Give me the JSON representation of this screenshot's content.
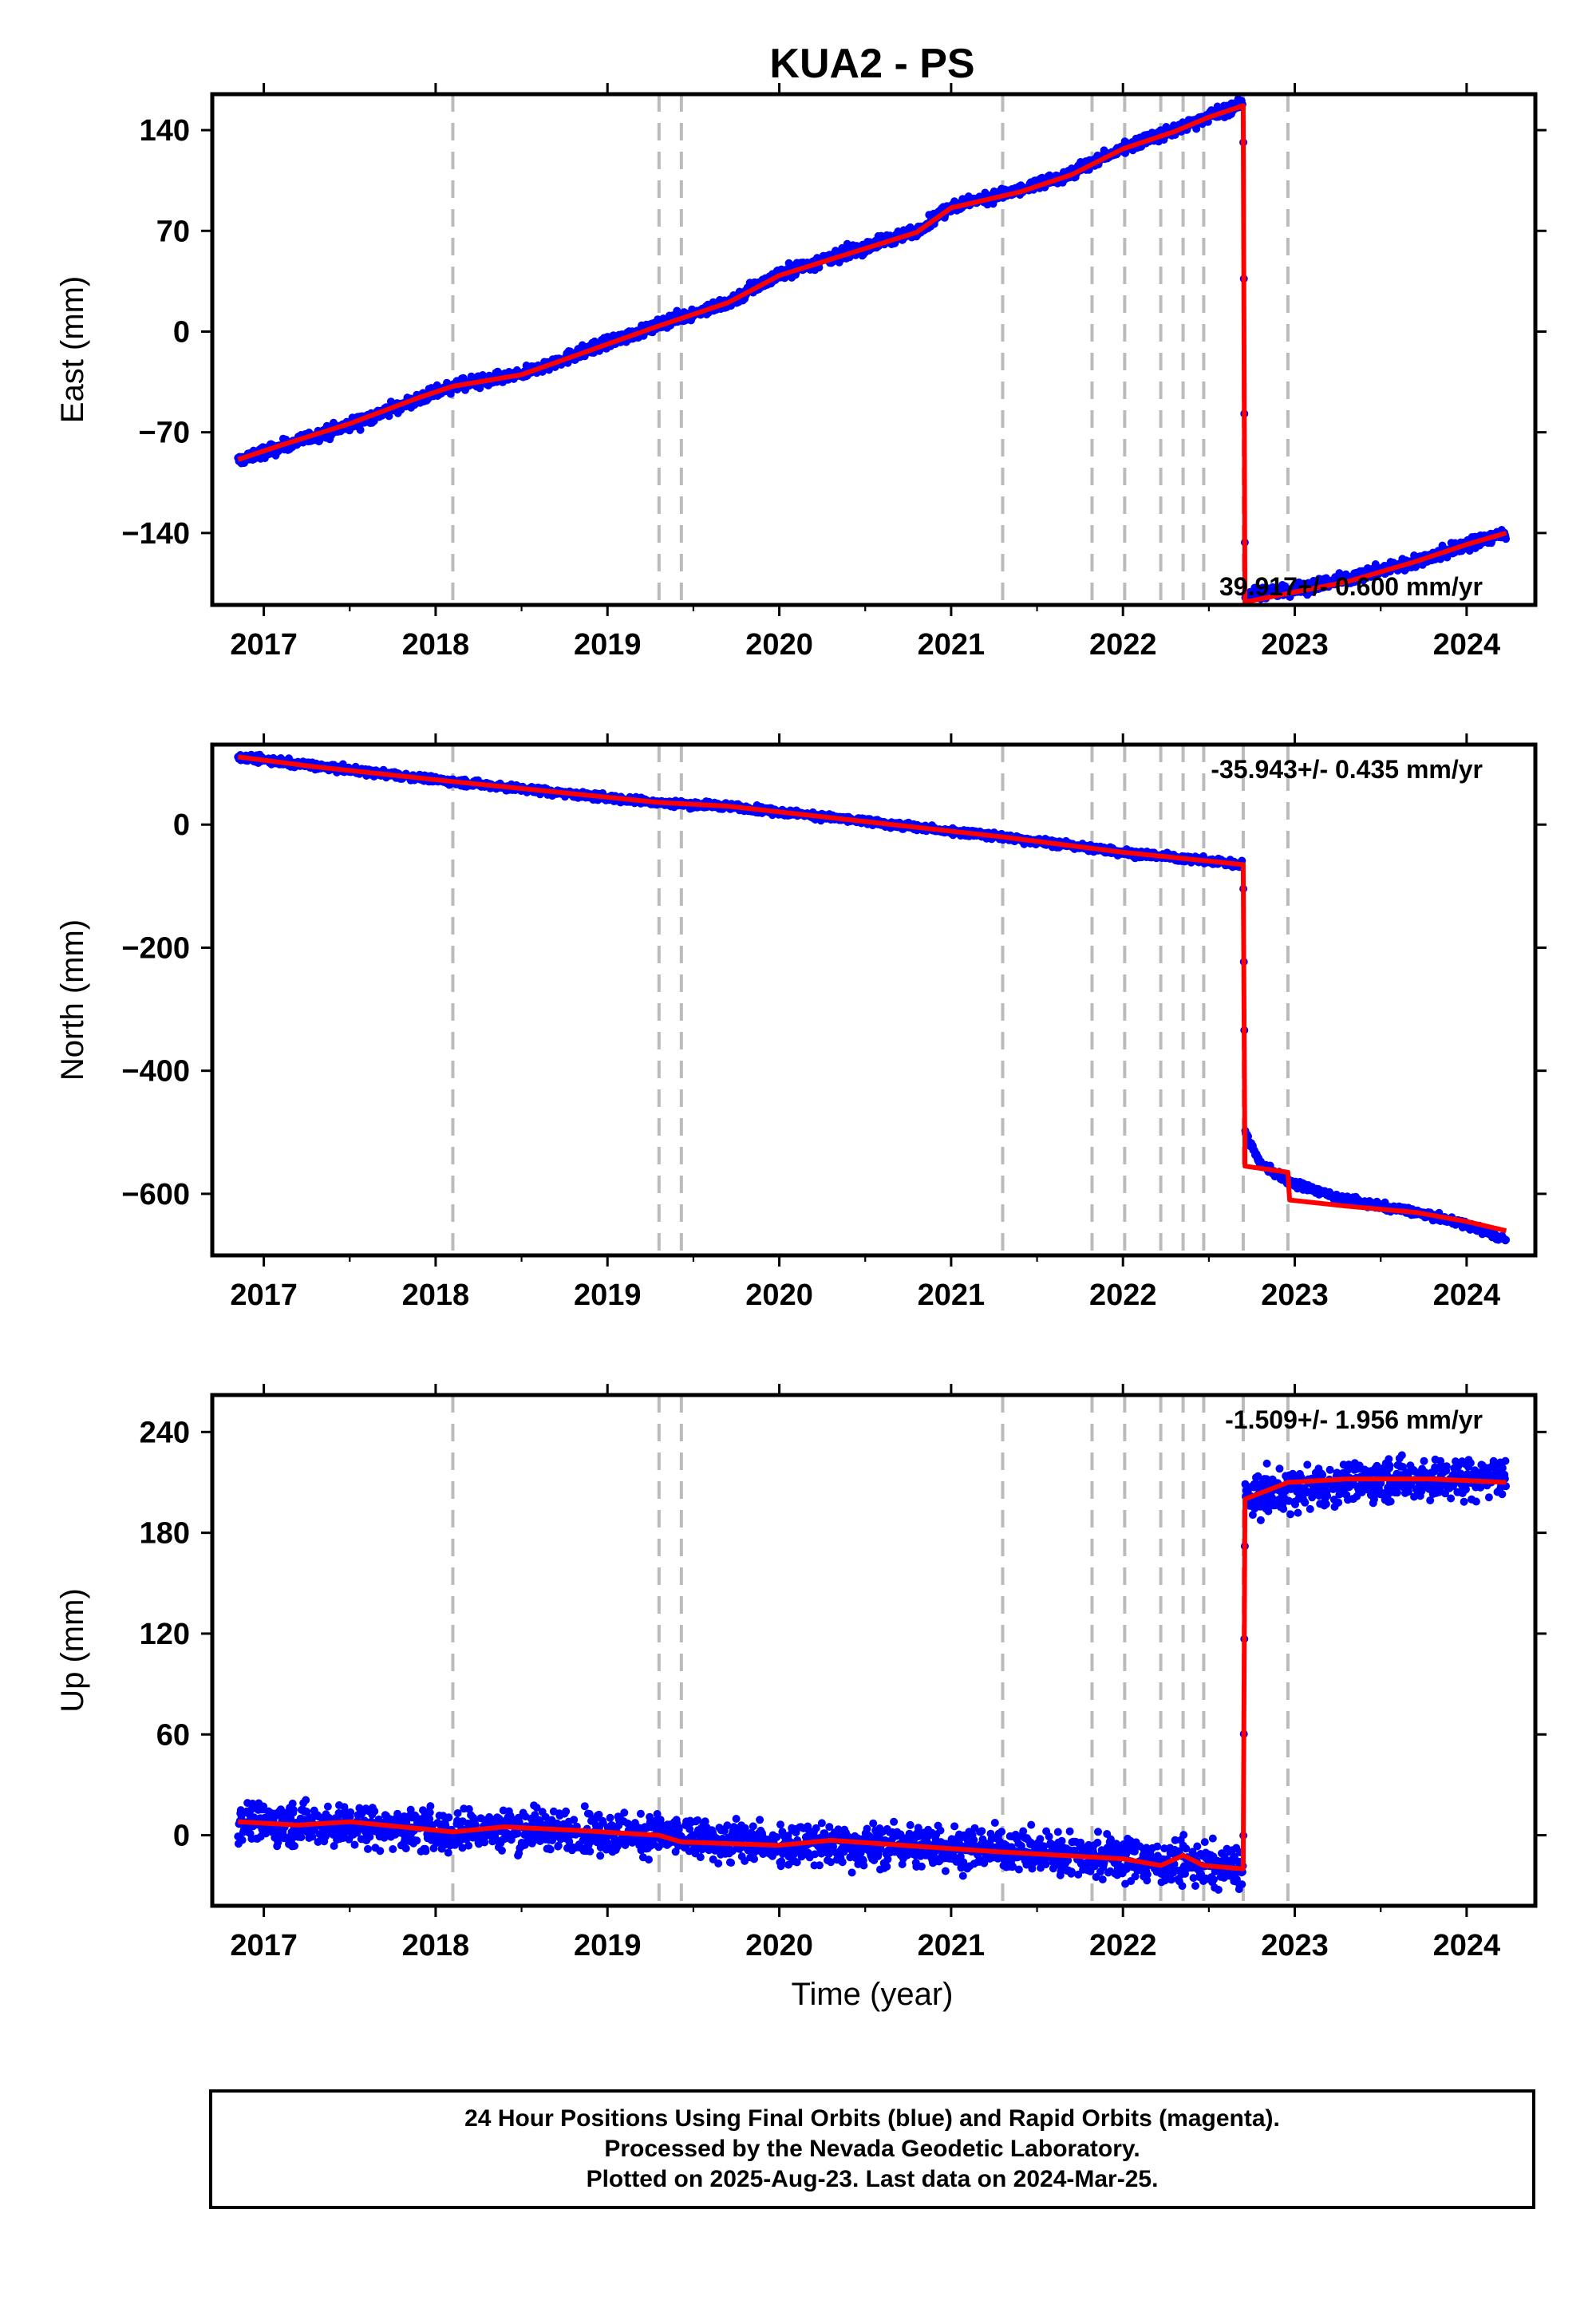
{
  "title": "KUA2 - PS",
  "xlabel": "Time (year)",
  "colors": {
    "data": "#0000ff",
    "model": "#ff0000",
    "steps": "#bbbbbb",
    "frame": "#000000"
  },
  "footer": {
    "line1": "24 Hour Positions Using Final Orbits (blue) and Rapid Orbits (magenta).",
    "line2": "Processed by the Nevada Geodetic Laboratory.",
    "line3": "Plotted on 2025-Aug-23. Last data on 2024-Mar-25."
  },
  "chart_data": [
    {
      "type": "scatter",
      "panel": "east",
      "ylabel": "East (mm)",
      "xlim": [
        2016.7,
        2024.4
      ],
      "ylim": [
        -190,
        165
      ],
      "yticks": [
        -140,
        -70,
        0,
        70,
        140
      ],
      "xticks": [
        2017,
        2018,
        2019,
        2020,
        2021,
        2022,
        2023,
        2024
      ],
      "rate_label": "39.917+/- 0.600 mm/yr",
      "step_epochs": [
        2018.1,
        2019.3,
        2019.43,
        2021.3,
        2021.82,
        2022.01,
        2022.22,
        2022.35,
        2022.47,
        2022.7,
        2022.96
      ],
      "noise": 3,
      "series": [
        {
          "name": "positions",
          "x": [
            2016.85,
            2017.1,
            2017.5,
            2017.9,
            2018.1,
            2018.5,
            2018.9,
            2019.3,
            2019.7,
            2020.0,
            2020.4,
            2020.8,
            2021.0,
            2021.4,
            2021.7,
            2022.0,
            2022.3,
            2022.5,
            2022.7,
            2022.71,
            2022.96,
            2023.3,
            2023.7,
            2024.0,
            2024.23
          ],
          "y": [
            -90,
            -80,
            -65,
            -47,
            -38,
            -30,
            -12,
            5,
            20,
            40,
            55,
            70,
            87,
            98,
            110,
            128,
            140,
            150,
            158,
            -183,
            -180,
            -172,
            -160,
            -148,
            -140
          ]
        },
        {
          "name": "model",
          "x": [
            2016.85,
            2017.1,
            2017.5,
            2017.9,
            2018.1,
            2018.5,
            2018.9,
            2019.3,
            2019.7,
            2020.0,
            2020.4,
            2020.8,
            2021.0,
            2021.4,
            2021.7,
            2022.0,
            2022.3,
            2022.5,
            2022.7,
            2022.71,
            2022.96,
            2023.3,
            2023.7,
            2024.0,
            2024.23
          ],
          "y": [
            -89,
            -79,
            -64,
            -46,
            -38,
            -30,
            -13,
            4,
            20,
            39,
            54,
            69,
            86,
            97,
            109,
            127,
            139,
            149,
            157,
            -188,
            -182,
            -174,
            -160,
            -148,
            -140
          ]
        }
      ]
    },
    {
      "type": "scatter",
      "panel": "north",
      "ylabel": "North (mm)",
      "xlim": [
        2016.7,
        2024.4
      ],
      "ylim": [
        -700,
        130
      ],
      "yticks": [
        -600,
        -400,
        -200,
        0
      ],
      "xticks": [
        2017,
        2018,
        2019,
        2020,
        2021,
        2022,
        2023,
        2024
      ],
      "rate_label": "-35.943+/- 0.435 mm/yr",
      "step_epochs": [
        2018.1,
        2019.3,
        2019.43,
        2021.3,
        2021.82,
        2022.01,
        2022.22,
        2022.35,
        2022.47,
        2022.7,
        2022.96
      ],
      "noise": 4,
      "series": [
        {
          "name": "positions",
          "x": [
            2016.85,
            2017.3,
            2018.1,
            2019.3,
            2019.7,
            2020.5,
            2021.3,
            2022.0,
            2022.7,
            2022.71,
            2022.8,
            2022.96,
            2023.3,
            2023.7,
            2024.0,
            2024.23
          ],
          "y": [
            110,
            95,
            70,
            35,
            30,
            5,
            -20,
            -45,
            -65,
            -500,
            -550,
            -580,
            -610,
            -630,
            -650,
            -675
          ]
        },
        {
          "name": "model",
          "x": [
            2016.85,
            2017.3,
            2018.1,
            2019.3,
            2019.7,
            2020.5,
            2021.3,
            2022.0,
            2022.7,
            2022.71,
            2022.96,
            2022.97,
            2023.3,
            2023.7,
            2024.0,
            2024.23
          ],
          "y": [
            110,
            94,
            70,
            36,
            30,
            5,
            -20,
            -45,
            -65,
            -555,
            -565,
            -610,
            -620,
            -630,
            -645,
            -660
          ]
        }
      ]
    },
    {
      "type": "scatter",
      "panel": "up",
      "ylabel": "Up (mm)",
      "xlim": [
        2016.7,
        2024.4
      ],
      "ylim": [
        -42,
        262
      ],
      "yticks": [
        0,
        60,
        120,
        180,
        240
      ],
      "xticks": [
        2017,
        2018,
        2019,
        2020,
        2021,
        2022,
        2023,
        2024
      ],
      "rate_label": "-1.509+/- 1.956 mm/yr",
      "step_epochs": [
        2018.1,
        2019.3,
        2019.43,
        2021.3,
        2021.82,
        2022.01,
        2022.22,
        2022.35,
        2022.47,
        2022.7,
        2022.96
      ],
      "noise": 9,
      "series": [
        {
          "name": "positions",
          "x": [
            2016.85,
            2017.5,
            2018.1,
            2018.5,
            2019.3,
            2019.7,
            2020.5,
            2021.3,
            2022.0,
            2022.7,
            2022.71,
            2022.96,
            2023.5,
            2024.0,
            2024.23
          ],
          "y": [
            8,
            6,
            2,
            4,
            0,
            -4,
            -6,
            -8,
            -14,
            -20,
            200,
            205,
            212,
            212,
            215
          ]
        },
        {
          "name": "model",
          "x": [
            2016.85,
            2017.2,
            2017.5,
            2018.1,
            2018.4,
            2018.8,
            2019.3,
            2019.43,
            2020.0,
            2020.3,
            2021.0,
            2021.3,
            2022.0,
            2022.22,
            2022.35,
            2022.47,
            2022.7,
            2022.71,
            2022.96,
            2023.3,
            2023.8,
            2024.23
          ],
          "y": [
            8,
            6,
            8,
            2,
            5,
            3,
            0,
            -4,
            -6,
            -3,
            -8,
            -10,
            -14,
            -18,
            -12,
            -18,
            -20,
            200,
            210,
            212,
            212,
            210
          ]
        }
      ]
    }
  ]
}
